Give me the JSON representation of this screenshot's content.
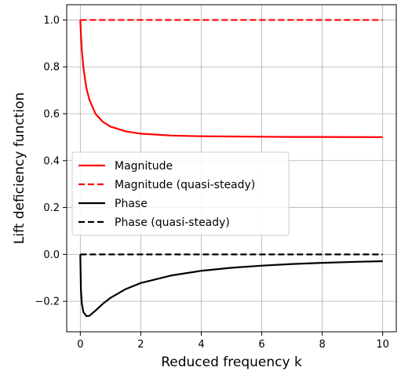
{
  "chart_data": {
    "type": "line",
    "title": "",
    "xlabel": "Reduced frequency k",
    "ylabel": "Lift deficiency function",
    "xlim": [
      -0.45,
      10.45
    ],
    "ylim": [
      -0.33,
      1.065
    ],
    "grid": true,
    "legend_position": "center-left",
    "x_ticks": [
      0,
      2,
      4,
      6,
      8,
      10
    ],
    "x_tick_labels": [
      "0",
      "2",
      "4",
      "6",
      "8",
      "10"
    ],
    "y_ticks": [
      -0.2,
      0.0,
      0.2,
      0.4,
      0.6,
      0.8,
      1.0
    ],
    "y_tick_labels": [
      "−0.2",
      "0.0",
      "0.2",
      "0.4",
      "0.6",
      "0.8",
      "1.0"
    ],
    "x": [
      0,
      0.02,
      0.05,
      0.1,
      0.2,
      0.3,
      0.5,
      0.75,
      1,
      1.5,
      2,
      3,
      4,
      5,
      6,
      7,
      8,
      9,
      10
    ],
    "series": [
      {
        "name": "Magnitude",
        "color": "#ff0000",
        "dash": "solid",
        "values": [
          1.0,
          0.94,
          0.87,
          0.8,
          0.71,
          0.66,
          0.6,
          0.565,
          0.545,
          0.525,
          0.515,
          0.507,
          0.504,
          0.503,
          0.502,
          0.501,
          0.501,
          0.5005,
          0.5003
        ]
      },
      {
        "name": "Magnitude (quasi-steady)",
        "color": "#ff0000",
        "dash": "dashed",
        "values": [
          1,
          1,
          1,
          1,
          1,
          1,
          1,
          1,
          1,
          1,
          1,
          1,
          1,
          1,
          1,
          1,
          1,
          1,
          1
        ]
      },
      {
        "name": "Phase",
        "color": "#000000",
        "dash": "solid",
        "values": [
          0.0,
          -0.15,
          -0.21,
          -0.245,
          -0.263,
          -0.262,
          -0.24,
          -0.21,
          -0.185,
          -0.148,
          -0.122,
          -0.09,
          -0.07,
          -0.057,
          -0.048,
          -0.041,
          -0.036,
          -0.032,
          -0.029
        ]
      },
      {
        "name": "Phase (quasi-steady)",
        "color": "#000000",
        "dash": "dashed",
        "values": [
          0,
          0,
          0,
          0,
          0,
          0,
          0,
          0,
          0,
          0,
          0,
          0,
          0,
          0,
          0,
          0,
          0,
          0,
          0
        ]
      }
    ]
  }
}
